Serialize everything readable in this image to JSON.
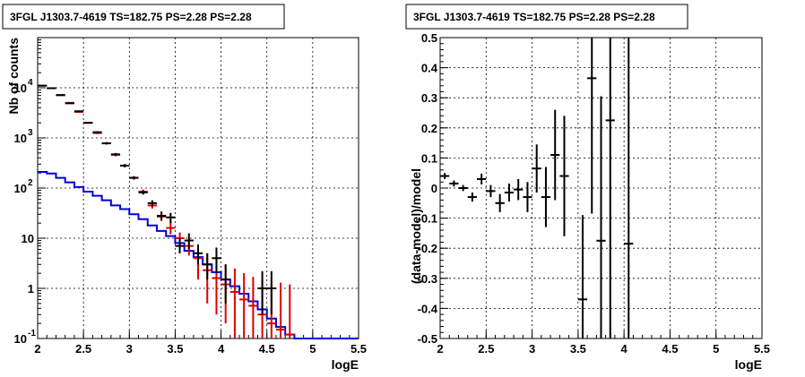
{
  "chart_data": [
    {
      "type": "line",
      "title": "3FGL J1303.7-4619 TS=182.75 PS=2.28 PS=2.28",
      "xlabel": "logE",
      "ylabel": "Nb of counts",
      "xlim": [
        2,
        5.5
      ],
      "ylim": [
        0.1,
        100000
      ],
      "yscale": "log",
      "grid": true,
      "x_ticks": [
        "2",
        "2.5",
        "3",
        "3.5",
        "4",
        "4.5",
        "5",
        "5.5"
      ],
      "y_ticks": [
        {
          "value": 0.1,
          "label": "10",
          "exp": "-1"
        },
        {
          "value": 1,
          "label": "1",
          "exp": ""
        },
        {
          "value": 10,
          "label": "10",
          "exp": ""
        },
        {
          "value": 100,
          "label": "10",
          "exp": "2"
        },
        {
          "value": 1000,
          "label": "10",
          "exp": "3"
        },
        {
          "value": 10000,
          "label": "10",
          "exp": "4"
        }
      ],
      "series": [
        {
          "color": "#0000dd",
          "style": "step",
          "bin_edges": [
            2.0,
            2.1,
            2.2,
            2.3,
            2.4,
            2.5,
            2.6,
            2.7,
            2.8,
            2.9,
            3.0,
            3.1,
            3.2,
            3.3,
            3.4,
            3.5,
            3.6,
            3.7,
            3.8,
            3.9,
            4.0,
            4.1,
            4.2,
            4.3,
            4.4,
            4.5,
            4.6,
            4.7,
            4.8,
            4.9,
            5.0,
            5.1,
            5.2,
            5.3,
            5.4,
            5.5
          ],
          "values": [
            210,
            195,
            160,
            130,
            105,
            85,
            70,
            57,
            45,
            38,
            30,
            24,
            18,
            14,
            11,
            8,
            5.6,
            4.2,
            3,
            2.1,
            1.5,
            1.1,
            0.78,
            0.55,
            0.38,
            0.25,
            0.17,
            0.12,
            0.1,
            0.1,
            0.1,
            0.1,
            0.1,
            0.1,
            0.1
          ]
        },
        {
          "color": "#dd0000",
          "style": "errorbar",
          "points": [
            {
              "x": 2.05,
              "y": 11000,
              "lo": 10800,
              "hi": 11200
            },
            {
              "x": 2.15,
              "y": 9800,
              "lo": 9600,
              "hi": 10000
            },
            {
              "x": 2.25,
              "y": 7200,
              "lo": 7000,
              "hi": 7400
            },
            {
              "x": 2.35,
              "y": 5000,
              "lo": 4850,
              "hi": 5150
            },
            {
              "x": 2.45,
              "y": 3300,
              "lo": 3200,
              "hi": 3400
            },
            {
              "x": 2.55,
              "y": 2000,
              "lo": 1920,
              "hi": 2080
            },
            {
              "x": 2.65,
              "y": 1250,
              "lo": 1190,
              "hi": 1310
            },
            {
              "x": 2.75,
              "y": 780,
              "lo": 740,
              "hi": 820
            },
            {
              "x": 2.85,
              "y": 460,
              "lo": 430,
              "hi": 490
            },
            {
              "x": 2.95,
              "y": 280,
              "lo": 260,
              "hi": 300
            },
            {
              "x": 3.05,
              "y": 160,
              "lo": 148,
              "hi": 172
            },
            {
              "x": 3.15,
              "y": 85,
              "lo": 77,
              "hi": 93
            },
            {
              "x": 3.25,
              "y": 45,
              "lo": 39,
              "hi": 52
            },
            {
              "x": 3.35,
              "y": 27,
              "lo": 22,
              "hi": 33
            },
            {
              "x": 3.45,
              "y": 16,
              "lo": 12,
              "hi": 21
            },
            {
              "x": 3.55,
              "y": 10,
              "lo": 6.5,
              "hi": 13
            },
            {
              "x": 3.65,
              "y": 7,
              "lo": 4.5,
              "hi": 10
            },
            {
              "x": 3.75,
              "y": 4,
              "lo": 1.5,
              "hi": 7
            },
            {
              "x": 3.85,
              "y": 2.3,
              "lo": 0.5,
              "hi": 5
            },
            {
              "x": 3.95,
              "y": 1.6,
              "lo": 0.3,
              "hi": 4
            },
            {
              "x": 4.05,
              "y": 1.2,
              "lo": 0.2,
              "hi": 3
            },
            {
              "x": 4.15,
              "y": 0.85,
              "lo": 0.1,
              "hi": 2.5
            },
            {
              "x": 4.25,
              "y": 0.6,
              "lo": 0.1,
              "hi": 2
            },
            {
              "x": 4.35,
              "y": 0.45,
              "lo": 0.1,
              "hi": 1.7
            },
            {
              "x": 4.45,
              "y": 0.3,
              "lo": 0.1,
              "hi": 1.5
            },
            {
              "x": 4.55,
              "y": 0.2,
              "lo": 0.1,
              "hi": 1.4
            },
            {
              "x": 4.65,
              "y": 0.15,
              "lo": 0.1,
              "hi": 1.3
            },
            {
              "x": 4.75,
              "y": 0.12,
              "lo": 0.1,
              "hi": 1.2
            }
          ]
        },
        {
          "color": "#000000",
          "style": "errorbar",
          "points": [
            {
              "x": 2.05,
              "y": 11000,
              "lo": 10800,
              "hi": 11200
            },
            {
              "x": 2.15,
              "y": 9800,
              "lo": 9600,
              "hi": 10000
            },
            {
              "x": 2.25,
              "y": 7100,
              "lo": 6900,
              "hi": 7300
            },
            {
              "x": 2.35,
              "y": 4900,
              "lo": 4750,
              "hi": 5050
            },
            {
              "x": 2.45,
              "y": 3400,
              "lo": 3300,
              "hi": 3500
            },
            {
              "x": 2.55,
              "y": 2000,
              "lo": 1920,
              "hi": 2080
            },
            {
              "x": 2.65,
              "y": 1300,
              "lo": 1240,
              "hi": 1360
            },
            {
              "x": 2.75,
              "y": 780,
              "lo": 740,
              "hi": 820
            },
            {
              "x": 2.85,
              "y": 470,
              "lo": 440,
              "hi": 500
            },
            {
              "x": 2.95,
              "y": 280,
              "lo": 260,
              "hi": 300
            },
            {
              "x": 3.05,
              "y": 160,
              "lo": 148,
              "hi": 172
            },
            {
              "x": 3.15,
              "y": 82,
              "lo": 74,
              "hi": 90
            },
            {
              "x": 3.25,
              "y": 50,
              "lo": 43,
              "hi": 57
            },
            {
              "x": 3.35,
              "y": 28,
              "lo": 23,
              "hi": 34
            },
            {
              "x": 3.45,
              "y": 26,
              "lo": 20,
              "hi": 32
            },
            {
              "x": 3.55,
              "y": 7,
              "lo": 5,
              "hi": 10
            },
            {
              "x": 3.65,
              "y": 9,
              "lo": 6,
              "hi": 12.5
            },
            {
              "x": 3.75,
              "y": 5,
              "lo": 3,
              "hi": 7.5
            },
            {
              "x": 3.85,
              "y": 3,
              "lo": 1.5,
              "hi": 5
            },
            {
              "x": 3.95,
              "y": 4,
              "lo": 2,
              "hi": 6.5
            },
            {
              "x": 4.05,
              "y": 1.5,
              "lo": 0.5,
              "hi": 3
            },
            {
              "x": 4.45,
              "y": 1,
              "lo": 0.3,
              "hi": 2.2
            },
            {
              "x": 4.55,
              "y": 1,
              "lo": 0.3,
              "hi": 2.2
            }
          ]
        }
      ]
    },
    {
      "type": "scatter",
      "title": "3FGL J1303.7-4619 TS=182.75 PS=2.28 PS=2.28",
      "xlabel": "logE",
      "ylabel": "(data-model)/model",
      "xlim": [
        2,
        5.5
      ],
      "ylim": [
        -0.5,
        0.5
      ],
      "grid": true,
      "x_ticks": [
        "2",
        "2.5",
        "3",
        "3.5",
        "4",
        "4.5",
        "5",
        "5.5"
      ],
      "y_ticks": [
        "-0.5",
        "-0.4",
        "-0.3",
        "-0.2",
        "-0.1",
        "0",
        "0.1",
        "0.2",
        "0.3",
        "0.4",
        "0.5"
      ],
      "series": [
        {
          "color": "#000000",
          "style": "errorbar",
          "points": [
            {
              "x": 2.05,
              "y": 0.04,
              "err": 0.01
            },
            {
              "x": 2.15,
              "y": 0.015,
              "err": 0.01
            },
            {
              "x": 2.25,
              "y": 0.0,
              "err": 0.01
            },
            {
              "x": 2.35,
              "y": -0.03,
              "err": 0.015
            },
            {
              "x": 2.45,
              "y": 0.03,
              "err": 0.018
            },
            {
              "x": 2.55,
              "y": -0.01,
              "err": 0.02
            },
            {
              "x": 2.65,
              "y": -0.05,
              "err": 0.03
            },
            {
              "x": 2.75,
              "y": -0.015,
              "err": 0.03
            },
            {
              "x": 2.85,
              "y": -0.005,
              "err": 0.035
            },
            {
              "x": 2.95,
              "y": -0.03,
              "err": 0.05
            },
            {
              "x": 3.05,
              "y": 0.065,
              "err": 0.08
            },
            {
              "x": 3.15,
              "y": -0.03,
              "err": 0.1
            },
            {
              "x": 3.25,
              "y": 0.11,
              "err": 0.15
            },
            {
              "x": 3.35,
              "y": 0.04,
              "err": 0.2
            },
            {
              "x": 3.55,
              "y": -0.37,
              "err": 0.28
            },
            {
              "x": 3.65,
              "y": 0.365,
              "err": 0.45
            },
            {
              "x": 3.75,
              "y": -0.175,
              "err": 0.48
            },
            {
              "x": 3.85,
              "y": 0.225,
              "err": 0.75
            },
            {
              "x": 4.05,
              "y": -0.185,
              "err": 0.9
            }
          ]
        }
      ]
    }
  ]
}
